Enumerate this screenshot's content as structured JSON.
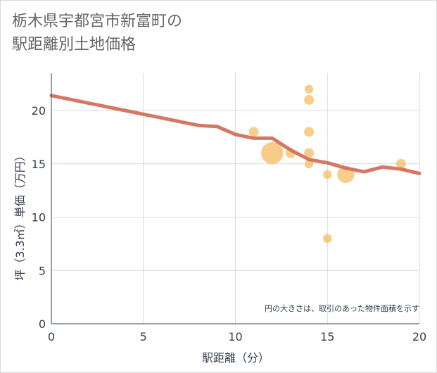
{
  "chart_data": {
    "type": "scatter",
    "title": "栃木県宇都宮市新富町の駅距離別土地価格",
    "title_lines": [
      "栃木県宇都宮市新富町の",
      "駅距離別土地価格"
    ],
    "xlabel": "駅距離（分）",
    "ylabel": "坪（3.3㎡）単価（万円）",
    "xlim": [
      0,
      20
    ],
    "ylim": [
      0,
      23.5
    ],
    "x_ticks": [
      0,
      5,
      10,
      15,
      20
    ],
    "y_ticks": [
      0,
      5,
      10,
      15,
      20
    ],
    "grid": true,
    "note": "円の大きさは、取引のあった物件面積を示す",
    "colors": {
      "bubble": "#f5c06b",
      "trend": "#d4705c",
      "grid": "#d3dce6",
      "axis": "#333f4f"
    },
    "bubbles": [
      {
        "x": 11,
        "y": 18,
        "size": 1
      },
      {
        "x": 12,
        "y": 16,
        "size": 5
      },
      {
        "x": 13,
        "y": 16,
        "size": 1
      },
      {
        "x": 14,
        "y": 22,
        "size": 0.8
      },
      {
        "x": 14,
        "y": 21,
        "size": 1
      },
      {
        "x": 14,
        "y": 18,
        "size": 1
      },
      {
        "x": 14,
        "y": 16,
        "size": 1
      },
      {
        "x": 14,
        "y": 15,
        "size": 0.8
      },
      {
        "x": 15,
        "y": 14,
        "size": 0.8
      },
      {
        "x": 15,
        "y": 8,
        "size": 0.8
      },
      {
        "x": 16,
        "y": 14,
        "size": 3
      },
      {
        "x": 19,
        "y": 15,
        "size": 1
      }
    ],
    "trend_line": {
      "x": [
        0,
        1,
        2,
        3,
        4,
        5,
        6,
        7,
        8,
        9,
        10,
        11,
        12,
        13,
        14,
        15,
        16,
        17,
        18,
        19,
        20
      ],
      "y": [
        21.4,
        21.05,
        20.7,
        20.35,
        20.0,
        19.65,
        19.3,
        18.95,
        18.6,
        18.5,
        17.75,
        17.4,
        17.4,
        16.3,
        15.4,
        15.1,
        14.6,
        14.25,
        14.7,
        14.5,
        14.1
      ]
    }
  }
}
